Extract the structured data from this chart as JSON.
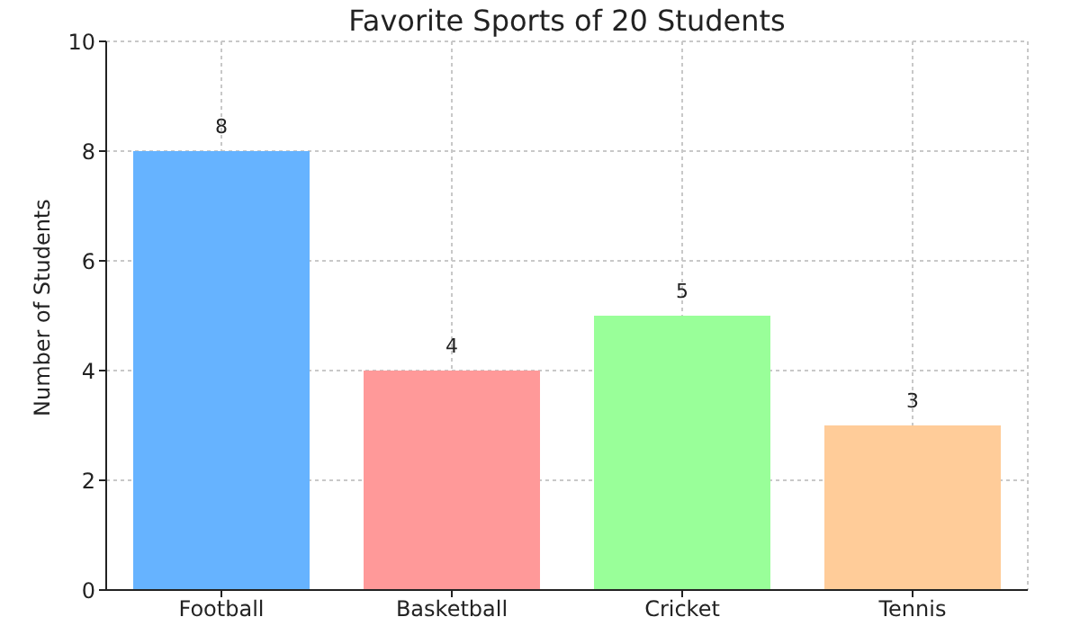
{
  "chart_data": {
    "type": "bar",
    "title": "Favorite Sports of 20 Students",
    "ylabel": "Number of Students",
    "categories": [
      "Football",
      "Basketball",
      "Cricket",
      "Tennis"
    ],
    "values": [
      8,
      4,
      5,
      3
    ],
    "colors": [
      "#66b3ff",
      "#ff9999",
      "#99ff99",
      "#ffcc99"
    ],
    "ylim": [
      0,
      10
    ],
    "yticks": [
      0,
      2,
      4,
      6,
      8,
      10
    ],
    "grid": true,
    "data_labels": true
  }
}
